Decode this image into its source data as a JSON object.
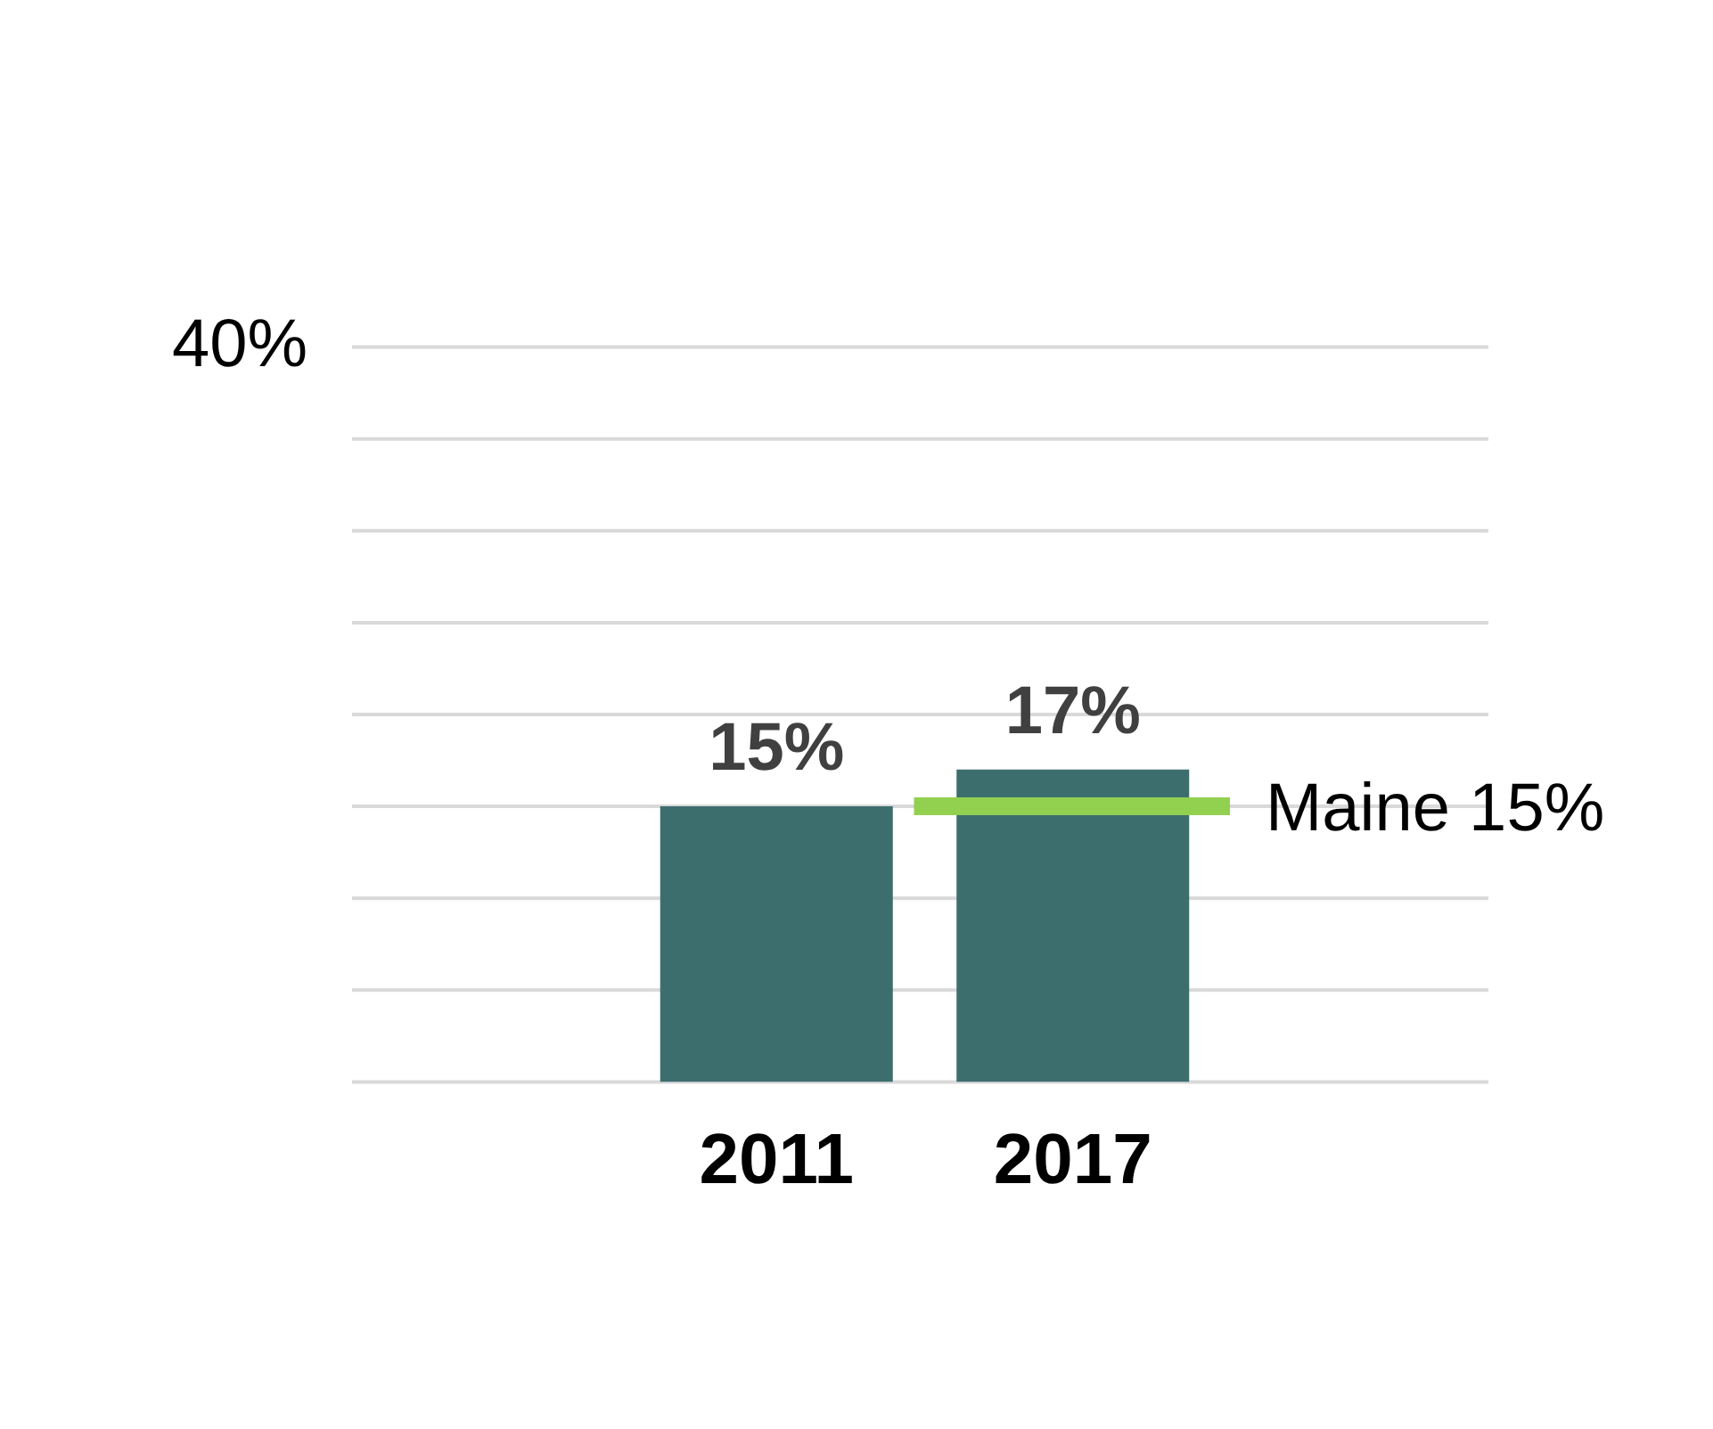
{
  "chart_data": {
    "type": "bar",
    "categories": [
      "2011",
      "2017"
    ],
    "series": [
      {
        "color": "#3d6e6e",
        "values": [
          15,
          17
        ],
        "value_labels": [
          "15%",
          "17%"
        ]
      }
    ],
    "ylim": [
      0,
      40
    ],
    "yticks": [
      {
        "value": 0,
        "label": null
      },
      {
        "value": 5,
        "label": null
      },
      {
        "value": 10,
        "label": null
      },
      {
        "value": 15,
        "label": null
      },
      {
        "value": 20,
        "label": null
      },
      {
        "value": 25,
        "label": null
      },
      {
        "value": 30,
        "label": null
      },
      {
        "value": 35,
        "label": null
      },
      {
        "value": 40,
        "label": "40%"
      }
    ],
    "grid": "y",
    "legend": false,
    "ref_lines": [
      {
        "axis": "y",
        "value": 15,
        "label": "Maine 15%",
        "color": "#92d050"
      }
    ]
  }
}
